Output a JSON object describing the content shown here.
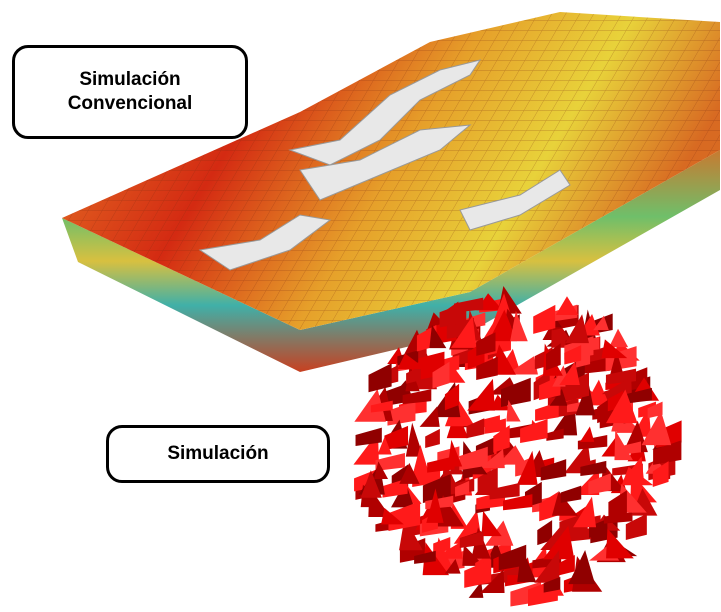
{
  "labels": [
    {
      "lines": [
        "Simulación",
        "Convencional"
      ]
    },
    {
      "lines": [
        "Simulación"
      ]
    }
  ]
}
